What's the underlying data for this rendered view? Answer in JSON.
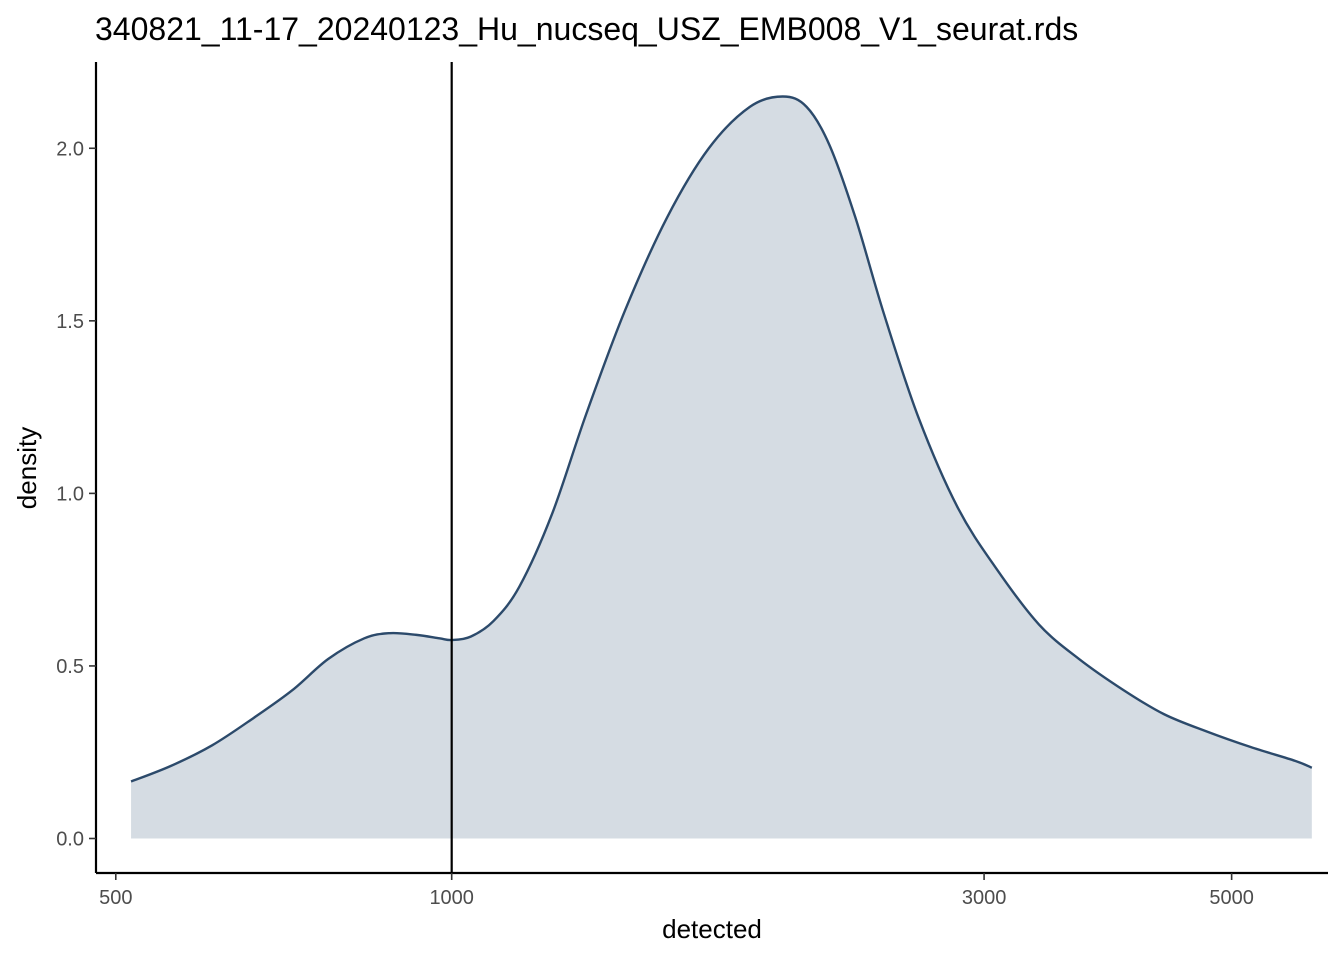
{
  "chart_data": {
    "type": "area",
    "title": "340821_11-17_20240123_Hu_nucseq_USZ_EMB008_V1_seurat.rds",
    "xlabel": "detected",
    "ylabel": "density",
    "x_scale": "log10",
    "xlim": [
      480,
      6100
    ],
    "ylim": [
      -0.1,
      2.25
    ],
    "x_ticks": [
      500,
      1000,
      3000,
      5000
    ],
    "y_ticks": [
      0.0,
      0.5,
      1.0,
      1.5,
      2.0
    ],
    "x_tick_labels": [
      "500",
      "1000",
      "3000",
      "5000"
    ],
    "y_tick_labels": [
      "0.0",
      "0.5",
      "1.0",
      "1.5",
      "2.0"
    ],
    "threshold_x": 1000,
    "grid": false,
    "fill_color": "#d5dce3",
    "line_color": "#2c4a6b",
    "series": [
      {
        "x": [
          516,
          560,
          610,
          665,
          720,
          775,
          835,
          880,
          930,
          975,
          1000,
          1040,
          1090,
          1150,
          1230,
          1320,
          1430,
          1560,
          1700,
          1850,
          1980,
          2080,
          2180,
          2300,
          2440,
          2620,
          2840,
          3080,
          3360,
          3650,
          4000,
          4350,
          4750,
          5200,
          5700,
          5900
        ],
        "y": [
          0.165,
          0.21,
          0.27,
          0.35,
          0.43,
          0.52,
          0.58,
          0.595,
          0.59,
          0.58,
          0.575,
          0.585,
          0.63,
          0.73,
          0.94,
          1.23,
          1.53,
          1.8,
          2.0,
          2.12,
          2.15,
          2.12,
          2.01,
          1.8,
          1.52,
          1.22,
          0.96,
          0.78,
          0.62,
          0.52,
          0.43,
          0.36,
          0.31,
          0.265,
          0.225,
          0.205
        ]
      }
    ]
  }
}
